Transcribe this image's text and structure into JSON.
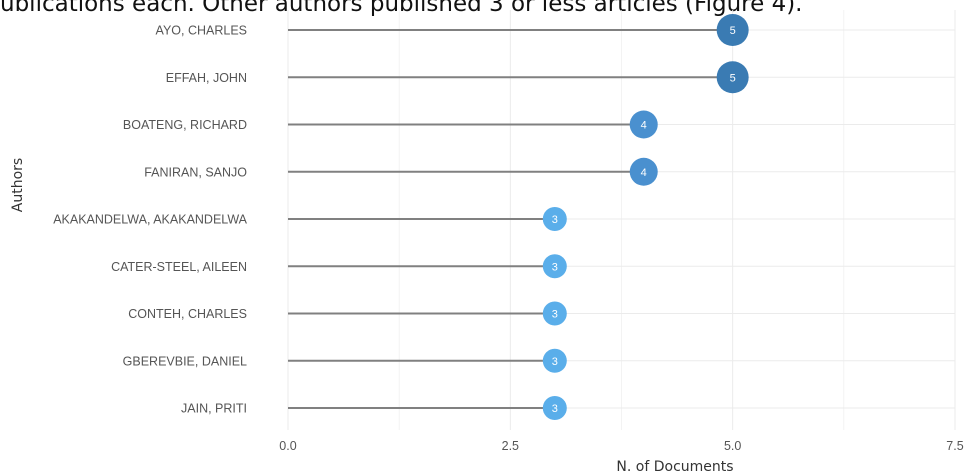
{
  "caption": "ublications each. Other authors published 3 or less articles (Figure 4).",
  "chart_data": {
    "type": "scatter",
    "style": "lollipop",
    "categories": [
      "AYO, CHARLES",
      "EFFAH, JOHN",
      "BOATENG, RICHARD",
      "FANIRAN, SANJO",
      "AKAKANDELWA, AKAKANDELWA",
      "CATER-STEEL, AILEEN",
      "CONTEH, CHARLES",
      "GBEREVBIE, DANIEL",
      "JAIN, PRITI"
    ],
    "values": [
      5,
      5,
      4,
      4,
      3,
      3,
      3,
      3,
      3
    ],
    "value_labels": [
      "5",
      "5",
      "4",
      "4",
      "3",
      "3",
      "3",
      "3",
      "3"
    ],
    "xlabel": "N. of Documents",
    "ylabel": "Authors",
    "xlim": [
      0,
      7.5
    ],
    "xticks": [
      0,
      2.5,
      5,
      7.5
    ],
    "xtick_labels": [
      "0.0",
      "2.5",
      "5.0",
      "7.5"
    ],
    "grid": true,
    "colors": {
      "high": "#3a7bb3",
      "mid": "#4a90cf",
      "low": "#5aaeea",
      "stem": "#808080",
      "grid": "#ebebeb"
    }
  }
}
